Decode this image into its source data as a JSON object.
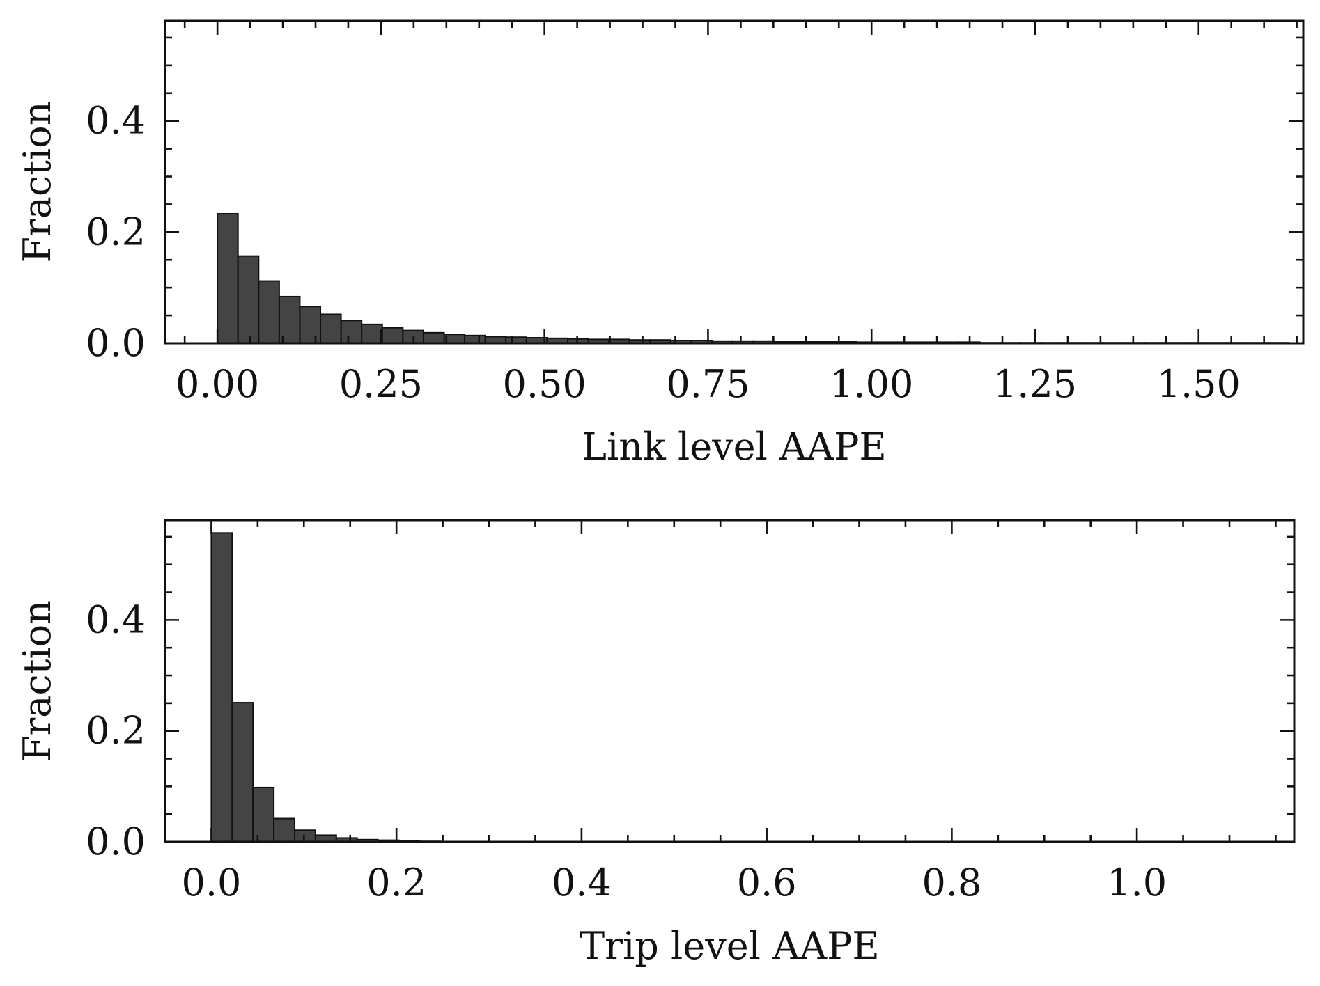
{
  "chart_data": [
    {
      "type": "bar",
      "xlabel": "Link level AAPE",
      "ylabel": "Fraction",
      "xlim": [
        -0.08,
        1.66
      ],
      "ylim": [
        0,
        0.58
      ],
      "xticks": [
        0.0,
        0.25,
        0.5,
        0.75,
        1.0,
        1.25,
        1.5
      ],
      "xtick_labels": [
        "0.00",
        "0.25",
        "0.50",
        "0.75",
        "1.00",
        "1.25",
        "1.50"
      ],
      "xminor_step": 0.05,
      "yticks": [
        0.0,
        0.2,
        0.4
      ],
      "ytick_labels": [
        "0.0",
        "0.2",
        "0.4"
      ],
      "yminor_step": 0.05,
      "bar_color": "#444444",
      "bin_start": 0.0,
      "bin_width": 0.0315,
      "values": [
        0.233,
        0.157,
        0.112,
        0.084,
        0.066,
        0.052,
        0.041,
        0.034,
        0.028,
        0.023,
        0.019,
        0.016,
        0.014,
        0.012,
        0.011,
        0.01,
        0.009,
        0.008,
        0.007,
        0.007,
        0.006,
        0.006,
        0.005,
        0.005,
        0.004,
        0.004,
        0.004,
        0.003,
        0.003,
        0.003,
        0.003,
        0.002,
        0.002,
        0.002,
        0.002,
        0.002,
        0.002,
        0.001,
        0.001,
        0.001,
        0.001,
        0.001,
        0.001,
        0.001,
        0.001,
        0.001,
        0.001,
        0.001,
        0.001,
        0.001,
        0.001,
        0.001
      ],
      "grid": false
    },
    {
      "type": "bar",
      "xlabel": "Trip level AAPE",
      "ylabel": "Fraction",
      "xlim": [
        -0.05,
        1.17
      ],
      "ylim": [
        0,
        0.58
      ],
      "xticks": [
        0.0,
        0.2,
        0.4,
        0.6,
        0.8,
        1.0
      ],
      "xtick_labels": [
        "0.0",
        "0.2",
        "0.4",
        "0.6",
        "0.8",
        "1.0"
      ],
      "xminor_step": 0.05,
      "yticks": [
        0.0,
        0.2,
        0.4
      ],
      "ytick_labels": [
        "0.0",
        "0.2",
        "0.4"
      ],
      "yminor_step": 0.05,
      "bar_color": "#444444",
      "bin_start": 0.0,
      "bin_width": 0.0225,
      "values": [
        0.557,
        0.251,
        0.098,
        0.042,
        0.021,
        0.012,
        0.007,
        0.004,
        0.003,
        0.002,
        0.001
      ],
      "grid": false
    }
  ]
}
